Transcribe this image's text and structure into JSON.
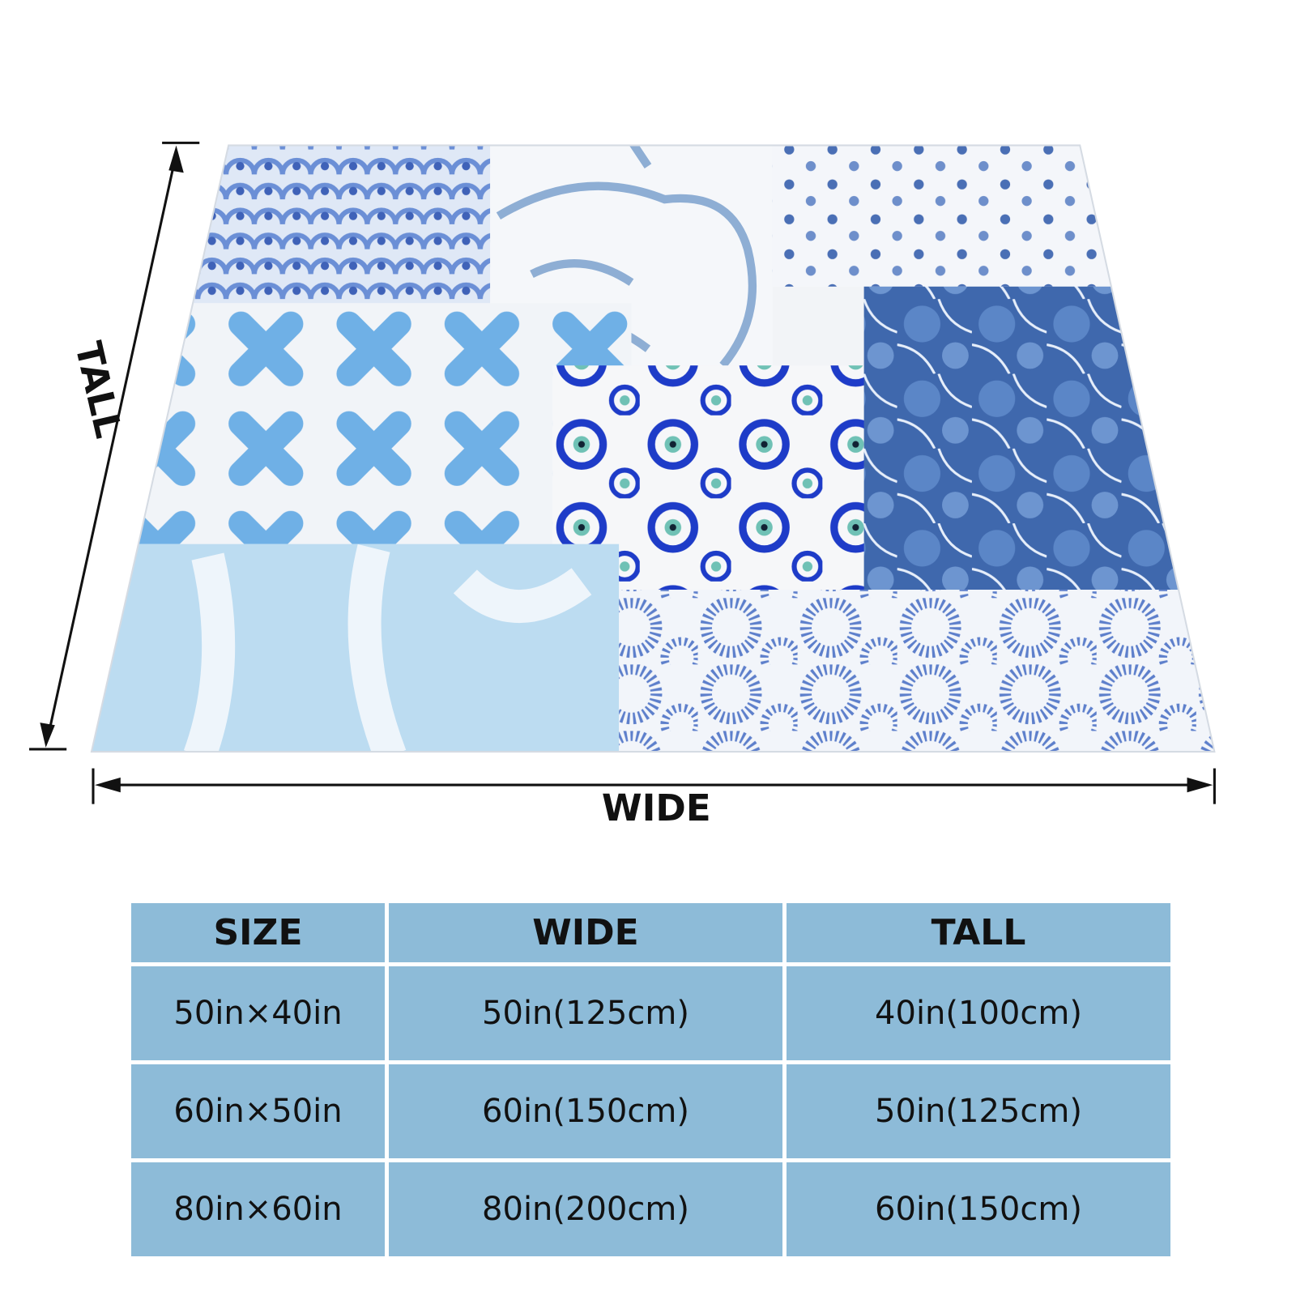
{
  "dimensions": {
    "tall_label": "TALL",
    "wide_label": "WIDE"
  },
  "table": {
    "header": [
      "SIZE",
      "WIDE",
      "TALL"
    ],
    "rows": [
      [
        "50in×40in",
        "50in(125cm)",
        "40in(100cm)"
      ],
      [
        "60in×50in",
        "60in(150cm)",
        "50in(125cm)"
      ],
      [
        "80in×60in",
        "80in(200cm)",
        "60in(150cm)"
      ]
    ]
  }
}
